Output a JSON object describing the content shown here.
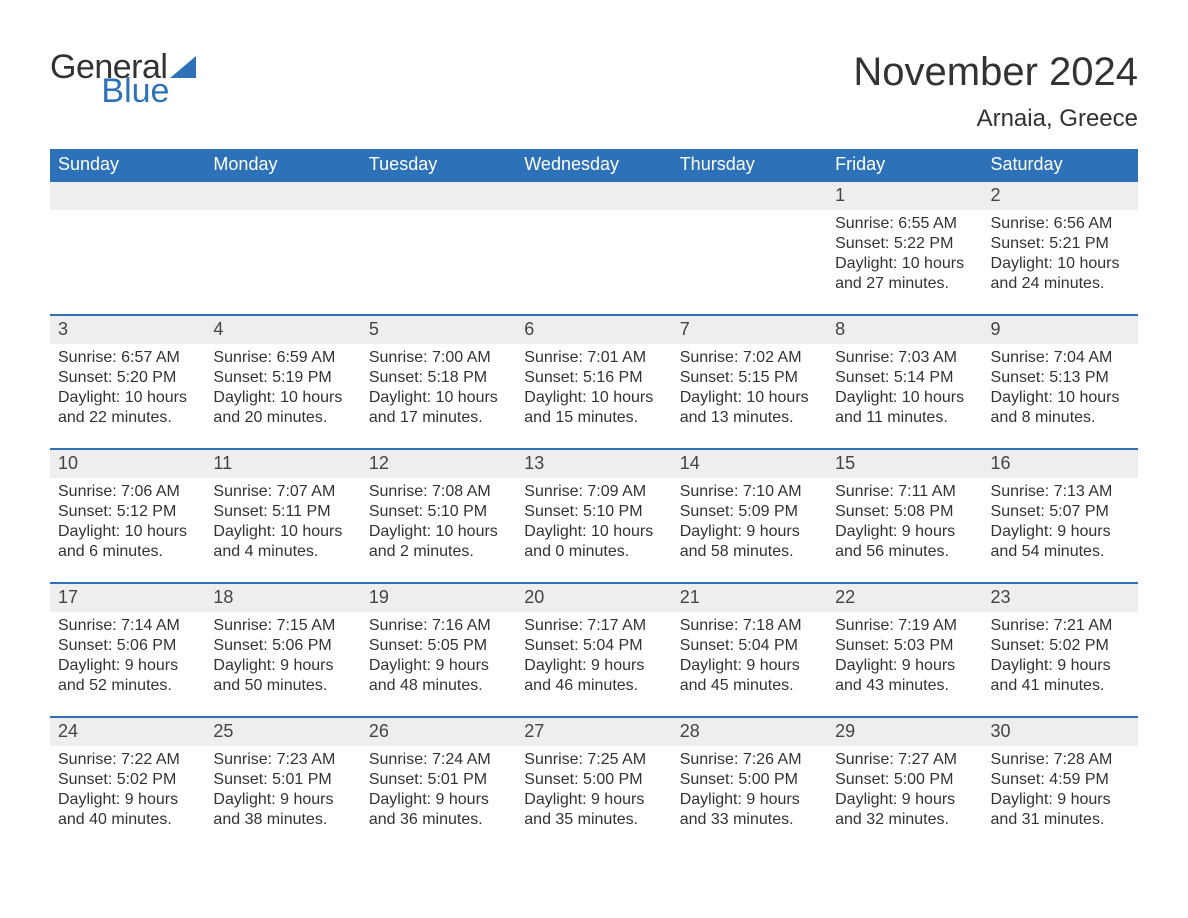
{
  "brand": {
    "word1": "General",
    "word2": "Blue",
    "text_color": "#333333",
    "accent_color": "#2d72b8"
  },
  "header": {
    "title": "November 2024",
    "location": "Arnaia, Greece",
    "title_fontsize": 40,
    "location_fontsize": 24
  },
  "calendar": {
    "type": "table",
    "header_bg": "#2d72b8",
    "header_text_color": "#ffffff",
    "daynum_bg": "#eeeeee",
    "row_border_color": "#2d72b8",
    "body_text_color": "#333333",
    "columns": [
      "Sunday",
      "Monday",
      "Tuesday",
      "Wednesday",
      "Thursday",
      "Friday",
      "Saturday"
    ],
    "weeks": [
      [
        null,
        null,
        null,
        null,
        null,
        {
          "n": "1",
          "sunrise": "6:55 AM",
          "sunset": "5:22 PM",
          "dl1": "Daylight: 10 hours",
          "dl2": "and 27 minutes."
        },
        {
          "n": "2",
          "sunrise": "6:56 AM",
          "sunset": "5:21 PM",
          "dl1": "Daylight: 10 hours",
          "dl2": "and 24 minutes."
        }
      ],
      [
        {
          "n": "3",
          "sunrise": "6:57 AM",
          "sunset": "5:20 PM",
          "dl1": "Daylight: 10 hours",
          "dl2": "and 22 minutes."
        },
        {
          "n": "4",
          "sunrise": "6:59 AM",
          "sunset": "5:19 PM",
          "dl1": "Daylight: 10 hours",
          "dl2": "and 20 minutes."
        },
        {
          "n": "5",
          "sunrise": "7:00 AM",
          "sunset": "5:18 PM",
          "dl1": "Daylight: 10 hours",
          "dl2": "and 17 minutes."
        },
        {
          "n": "6",
          "sunrise": "7:01 AM",
          "sunset": "5:16 PM",
          "dl1": "Daylight: 10 hours",
          "dl2": "and 15 minutes."
        },
        {
          "n": "7",
          "sunrise": "7:02 AM",
          "sunset": "5:15 PM",
          "dl1": "Daylight: 10 hours",
          "dl2": "and 13 minutes."
        },
        {
          "n": "8",
          "sunrise": "7:03 AM",
          "sunset": "5:14 PM",
          "dl1": "Daylight: 10 hours",
          "dl2": "and 11 minutes."
        },
        {
          "n": "9",
          "sunrise": "7:04 AM",
          "sunset": "5:13 PM",
          "dl1": "Daylight: 10 hours",
          "dl2": "and 8 minutes."
        }
      ],
      [
        {
          "n": "10",
          "sunrise": "7:06 AM",
          "sunset": "5:12 PM",
          "dl1": "Daylight: 10 hours",
          "dl2": "and 6 minutes."
        },
        {
          "n": "11",
          "sunrise": "7:07 AM",
          "sunset": "5:11 PM",
          "dl1": "Daylight: 10 hours",
          "dl2": "and 4 minutes."
        },
        {
          "n": "12",
          "sunrise": "7:08 AM",
          "sunset": "5:10 PM",
          "dl1": "Daylight: 10 hours",
          "dl2": "and 2 minutes."
        },
        {
          "n": "13",
          "sunrise": "7:09 AM",
          "sunset": "5:10 PM",
          "dl1": "Daylight: 10 hours",
          "dl2": "and 0 minutes."
        },
        {
          "n": "14",
          "sunrise": "7:10 AM",
          "sunset": "5:09 PM",
          "dl1": "Daylight: 9 hours",
          "dl2": "and 58 minutes."
        },
        {
          "n": "15",
          "sunrise": "7:11 AM",
          "sunset": "5:08 PM",
          "dl1": "Daylight: 9 hours",
          "dl2": "and 56 minutes."
        },
        {
          "n": "16",
          "sunrise": "7:13 AM",
          "sunset": "5:07 PM",
          "dl1": "Daylight: 9 hours",
          "dl2": "and 54 minutes."
        }
      ],
      [
        {
          "n": "17",
          "sunrise": "7:14 AM",
          "sunset": "5:06 PM",
          "dl1": "Daylight: 9 hours",
          "dl2": "and 52 minutes."
        },
        {
          "n": "18",
          "sunrise": "7:15 AM",
          "sunset": "5:06 PM",
          "dl1": "Daylight: 9 hours",
          "dl2": "and 50 minutes."
        },
        {
          "n": "19",
          "sunrise": "7:16 AM",
          "sunset": "5:05 PM",
          "dl1": "Daylight: 9 hours",
          "dl2": "and 48 minutes."
        },
        {
          "n": "20",
          "sunrise": "7:17 AM",
          "sunset": "5:04 PM",
          "dl1": "Daylight: 9 hours",
          "dl2": "and 46 minutes."
        },
        {
          "n": "21",
          "sunrise": "7:18 AM",
          "sunset": "5:04 PM",
          "dl1": "Daylight: 9 hours",
          "dl2": "and 45 minutes."
        },
        {
          "n": "22",
          "sunrise": "7:19 AM",
          "sunset": "5:03 PM",
          "dl1": "Daylight: 9 hours",
          "dl2": "and 43 minutes."
        },
        {
          "n": "23",
          "sunrise": "7:21 AM",
          "sunset": "5:02 PM",
          "dl1": "Daylight: 9 hours",
          "dl2": "and 41 minutes."
        }
      ],
      [
        {
          "n": "24",
          "sunrise": "7:22 AM",
          "sunset": "5:02 PM",
          "dl1": "Daylight: 9 hours",
          "dl2": "and 40 minutes."
        },
        {
          "n": "25",
          "sunrise": "7:23 AM",
          "sunset": "5:01 PM",
          "dl1": "Daylight: 9 hours",
          "dl2": "and 38 minutes."
        },
        {
          "n": "26",
          "sunrise": "7:24 AM",
          "sunset": "5:01 PM",
          "dl1": "Daylight: 9 hours",
          "dl2": "and 36 minutes."
        },
        {
          "n": "27",
          "sunrise": "7:25 AM",
          "sunset": "5:00 PM",
          "dl1": "Daylight: 9 hours",
          "dl2": "and 35 minutes."
        },
        {
          "n": "28",
          "sunrise": "7:26 AM",
          "sunset": "5:00 PM",
          "dl1": "Daylight: 9 hours",
          "dl2": "and 33 minutes."
        },
        {
          "n": "29",
          "sunrise": "7:27 AM",
          "sunset": "5:00 PM",
          "dl1": "Daylight: 9 hours",
          "dl2": "and 32 minutes."
        },
        {
          "n": "30",
          "sunrise": "7:28 AM",
          "sunset": "4:59 PM",
          "dl1": "Daylight: 9 hours",
          "dl2": "and 31 minutes."
        }
      ]
    ]
  }
}
